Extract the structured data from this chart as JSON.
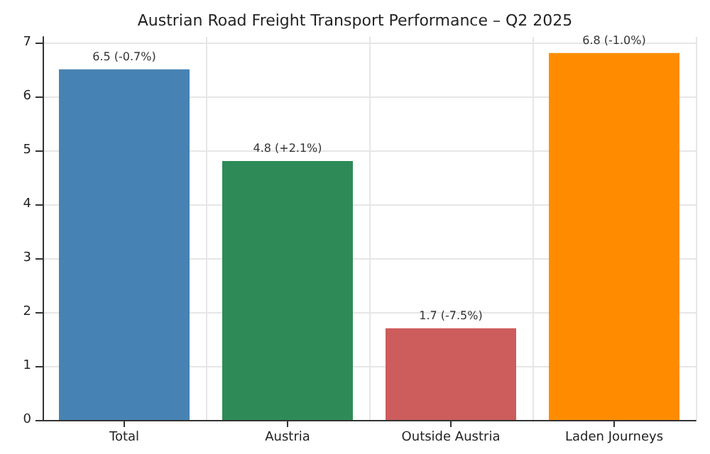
{
  "chart_data": {
    "type": "bar",
    "title": "Austrian Road Freight Transport Performance – Q2 2025",
    "categories": [
      "Total",
      "Austria",
      "Outside Austria",
      "Laden Journeys"
    ],
    "values": [
      6.5,
      4.8,
      1.7,
      6.8
    ],
    "colors": [
      "#4682b4",
      "#2e8b57",
      "#cd5c5c",
      "#ff8c00"
    ],
    "value_labels": [
      "6.5 (-0.7%)",
      "4.8 (+2.1%)",
      "1.7 (-7.5%)",
      "6.8 (-1.0%)"
    ],
    "ylim": [
      0,
      7.1
    ],
    "yticks": [
      0,
      1,
      2,
      3,
      4,
      5,
      6,
      7
    ],
    "grid": true
  }
}
